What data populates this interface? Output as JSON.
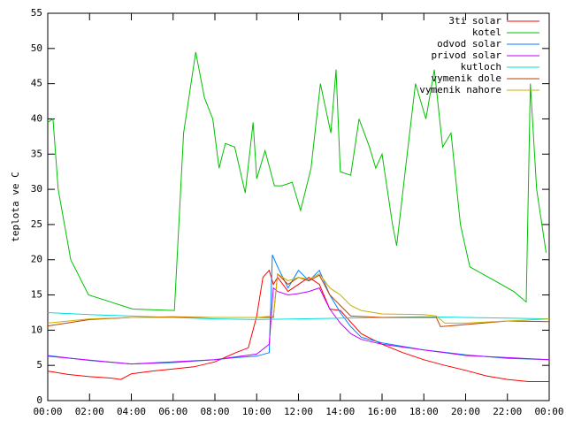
{
  "chart_data": {
    "type": "line",
    "y_label": "teplota ve C",
    "xlim": [
      0,
      24
    ],
    "ylim": [
      0,
      55
    ],
    "xticks": [
      {
        "value": 0,
        "label": "00:00"
      },
      {
        "value": 2,
        "label": "02:00"
      },
      {
        "value": 4,
        "label": "04:00"
      },
      {
        "value": 6,
        "label": "06:00"
      },
      {
        "value": 8,
        "label": "08:00"
      },
      {
        "value": 10,
        "label": "10:00"
      },
      {
        "value": 12,
        "label": "12:00"
      },
      {
        "value": 14,
        "label": "14:00"
      },
      {
        "value": 16,
        "label": "16:00"
      },
      {
        "value": 18,
        "label": "18:00"
      },
      {
        "value": 20,
        "label": "20:00"
      },
      {
        "value": 22,
        "label": "22:00"
      },
      {
        "value": 24,
        "label": "00:00"
      }
    ],
    "yticks": [
      0,
      5,
      10,
      15,
      20,
      25,
      30,
      35,
      40,
      45,
      50,
      55
    ],
    "legend": "top-right",
    "series": [
      {
        "name": "3ti solar",
        "color": "#ff0000",
        "x": [
          0,
          1,
          2,
          3,
          3.5,
          4,
          5,
          6,
          7,
          8,
          9,
          9.6,
          10,
          10.3,
          10.6,
          10.8,
          11,
          11.5,
          12,
          12.5,
          13,
          13.5,
          14,
          15,
          16,
          17,
          18,
          19,
          20,
          21,
          22,
          23,
          24
        ],
        "values": [
          4.2,
          3.7,
          3.4,
          3.2,
          3.0,
          3.8,
          4.2,
          4.5,
          4.8,
          5.5,
          6.8,
          7.5,
          12,
          17.5,
          18.5,
          16.5,
          17.5,
          15.5,
          16.5,
          17.5,
          16.5,
          13,
          12.8,
          9.5,
          8,
          6.8,
          5.8,
          5,
          4.3,
          3.5,
          3,
          2.7,
          2.7
        ]
      },
      {
        "name": "kotel",
        "color": "#00c000",
        "x": [
          0,
          0.25,
          0.5,
          1.1,
          1.95,
          4.07,
          6.06,
          6.5,
          7.08,
          7.5,
          7.9,
          8.2,
          8.5,
          8.95,
          9.45,
          9.83,
          10,
          10.4,
          10.85,
          11.2,
          11.7,
          12.1,
          12.6,
          13.05,
          13.55,
          13.8,
          14,
          14.5,
          14.9,
          15.4,
          15.7,
          16,
          16.5,
          16.7,
          17.2,
          17.6,
          18.1,
          18.5,
          18.9,
          19.3,
          19.75,
          20.2,
          20.8,
          21.4,
          22.3,
          22.9,
          23.1,
          23.4,
          23.85
        ],
        "values": [
          39.5,
          40,
          30,
          20,
          15,
          13,
          12.8,
          38,
          49.5,
          43,
          40,
          33,
          36.5,
          36,
          29.5,
          39.5,
          31.5,
          35.5,
          30.5,
          30.5,
          31,
          27,
          33,
          45,
          38,
          47,
          32.5,
          32,
          40,
          36,
          33,
          35,
          25,
          22,
          35,
          45,
          40,
          47,
          36,
          38,
          25,
          19,
          18,
          17,
          15.5,
          14,
          45,
          30,
          21
        ]
      },
      {
        "name": "odvod solar",
        "color": "#0080ff",
        "x": [
          0,
          2,
          4,
          6,
          8,
          9,
          10,
          10.6,
          10.75,
          11,
          11.5,
          12,
          12.5,
          13,
          13.5,
          14,
          14.5,
          15,
          16,
          18,
          20,
          22,
          24
        ],
        "values": [
          6.4,
          5.7,
          5.2,
          5.4,
          5.8,
          6.1,
          6.3,
          6.8,
          20.7,
          19,
          16,
          18.5,
          17,
          18.5,
          15,
          12.5,
          10.5,
          9,
          8.2,
          7.2,
          6.5,
          6,
          5.8
        ]
      },
      {
        "name": "privod solar",
        "color": "#c000ff",
        "x": [
          0,
          4,
          8,
          10,
          10.6,
          10.8,
          11,
          11.5,
          12,
          12.5,
          13,
          13.5,
          14,
          14.5,
          15,
          16,
          18,
          20,
          24
        ],
        "values": [
          6.3,
          5.2,
          5.8,
          6.6,
          8,
          16,
          15.5,
          15,
          15.2,
          15.5,
          16,
          13,
          11,
          9.5,
          8.7,
          8,
          7.2,
          6.4,
          5.8
        ]
      },
      {
        "name": "kutloch",
        "color": "#00dddd",
        "x": [
          0,
          2,
          4,
          6,
          8,
          10,
          12,
          14,
          16,
          18,
          20,
          22,
          24
        ],
        "values": [
          12.5,
          12.2,
          12,
          11.8,
          11.6,
          11.5,
          11.6,
          11.7,
          11.8,
          11.9,
          11.8,
          11.7,
          11.6
        ]
      },
      {
        "name": "vymenik dole",
        "color": "#c04000",
        "x": [
          0,
          2,
          4,
          6,
          8,
          10,
          10.8,
          11,
          11.5,
          12,
          12.5,
          13,
          13.5,
          14,
          14.5,
          16,
          18,
          18.6,
          18.8,
          20,
          22,
          24
        ],
        "values": [
          10.6,
          11.5,
          11.8,
          11.9,
          11.8,
          11.8,
          11.8,
          18,
          16.5,
          17.5,
          17,
          17.8,
          15,
          13.5,
          12,
          11.8,
          11.8,
          11.8,
          10.5,
          10.8,
          11.3,
          11.2
        ]
      },
      {
        "name": "vymenik nahore",
        "color": "#c8b000",
        "x": [
          0,
          2,
          4,
          6,
          10,
          10.8,
          11,
          11.5,
          12,
          12.5,
          13,
          13.5,
          14,
          14.5,
          15,
          16,
          18,
          18.6,
          19,
          20,
          22,
          24
        ],
        "values": [
          11,
          11.6,
          11.8,
          11.8,
          11.8,
          12,
          18,
          17,
          17.5,
          17.2,
          18,
          16,
          15,
          13.5,
          12.8,
          12.3,
          12.2,
          12,
          11,
          11,
          11.3,
          11.6
        ]
      }
    ]
  }
}
